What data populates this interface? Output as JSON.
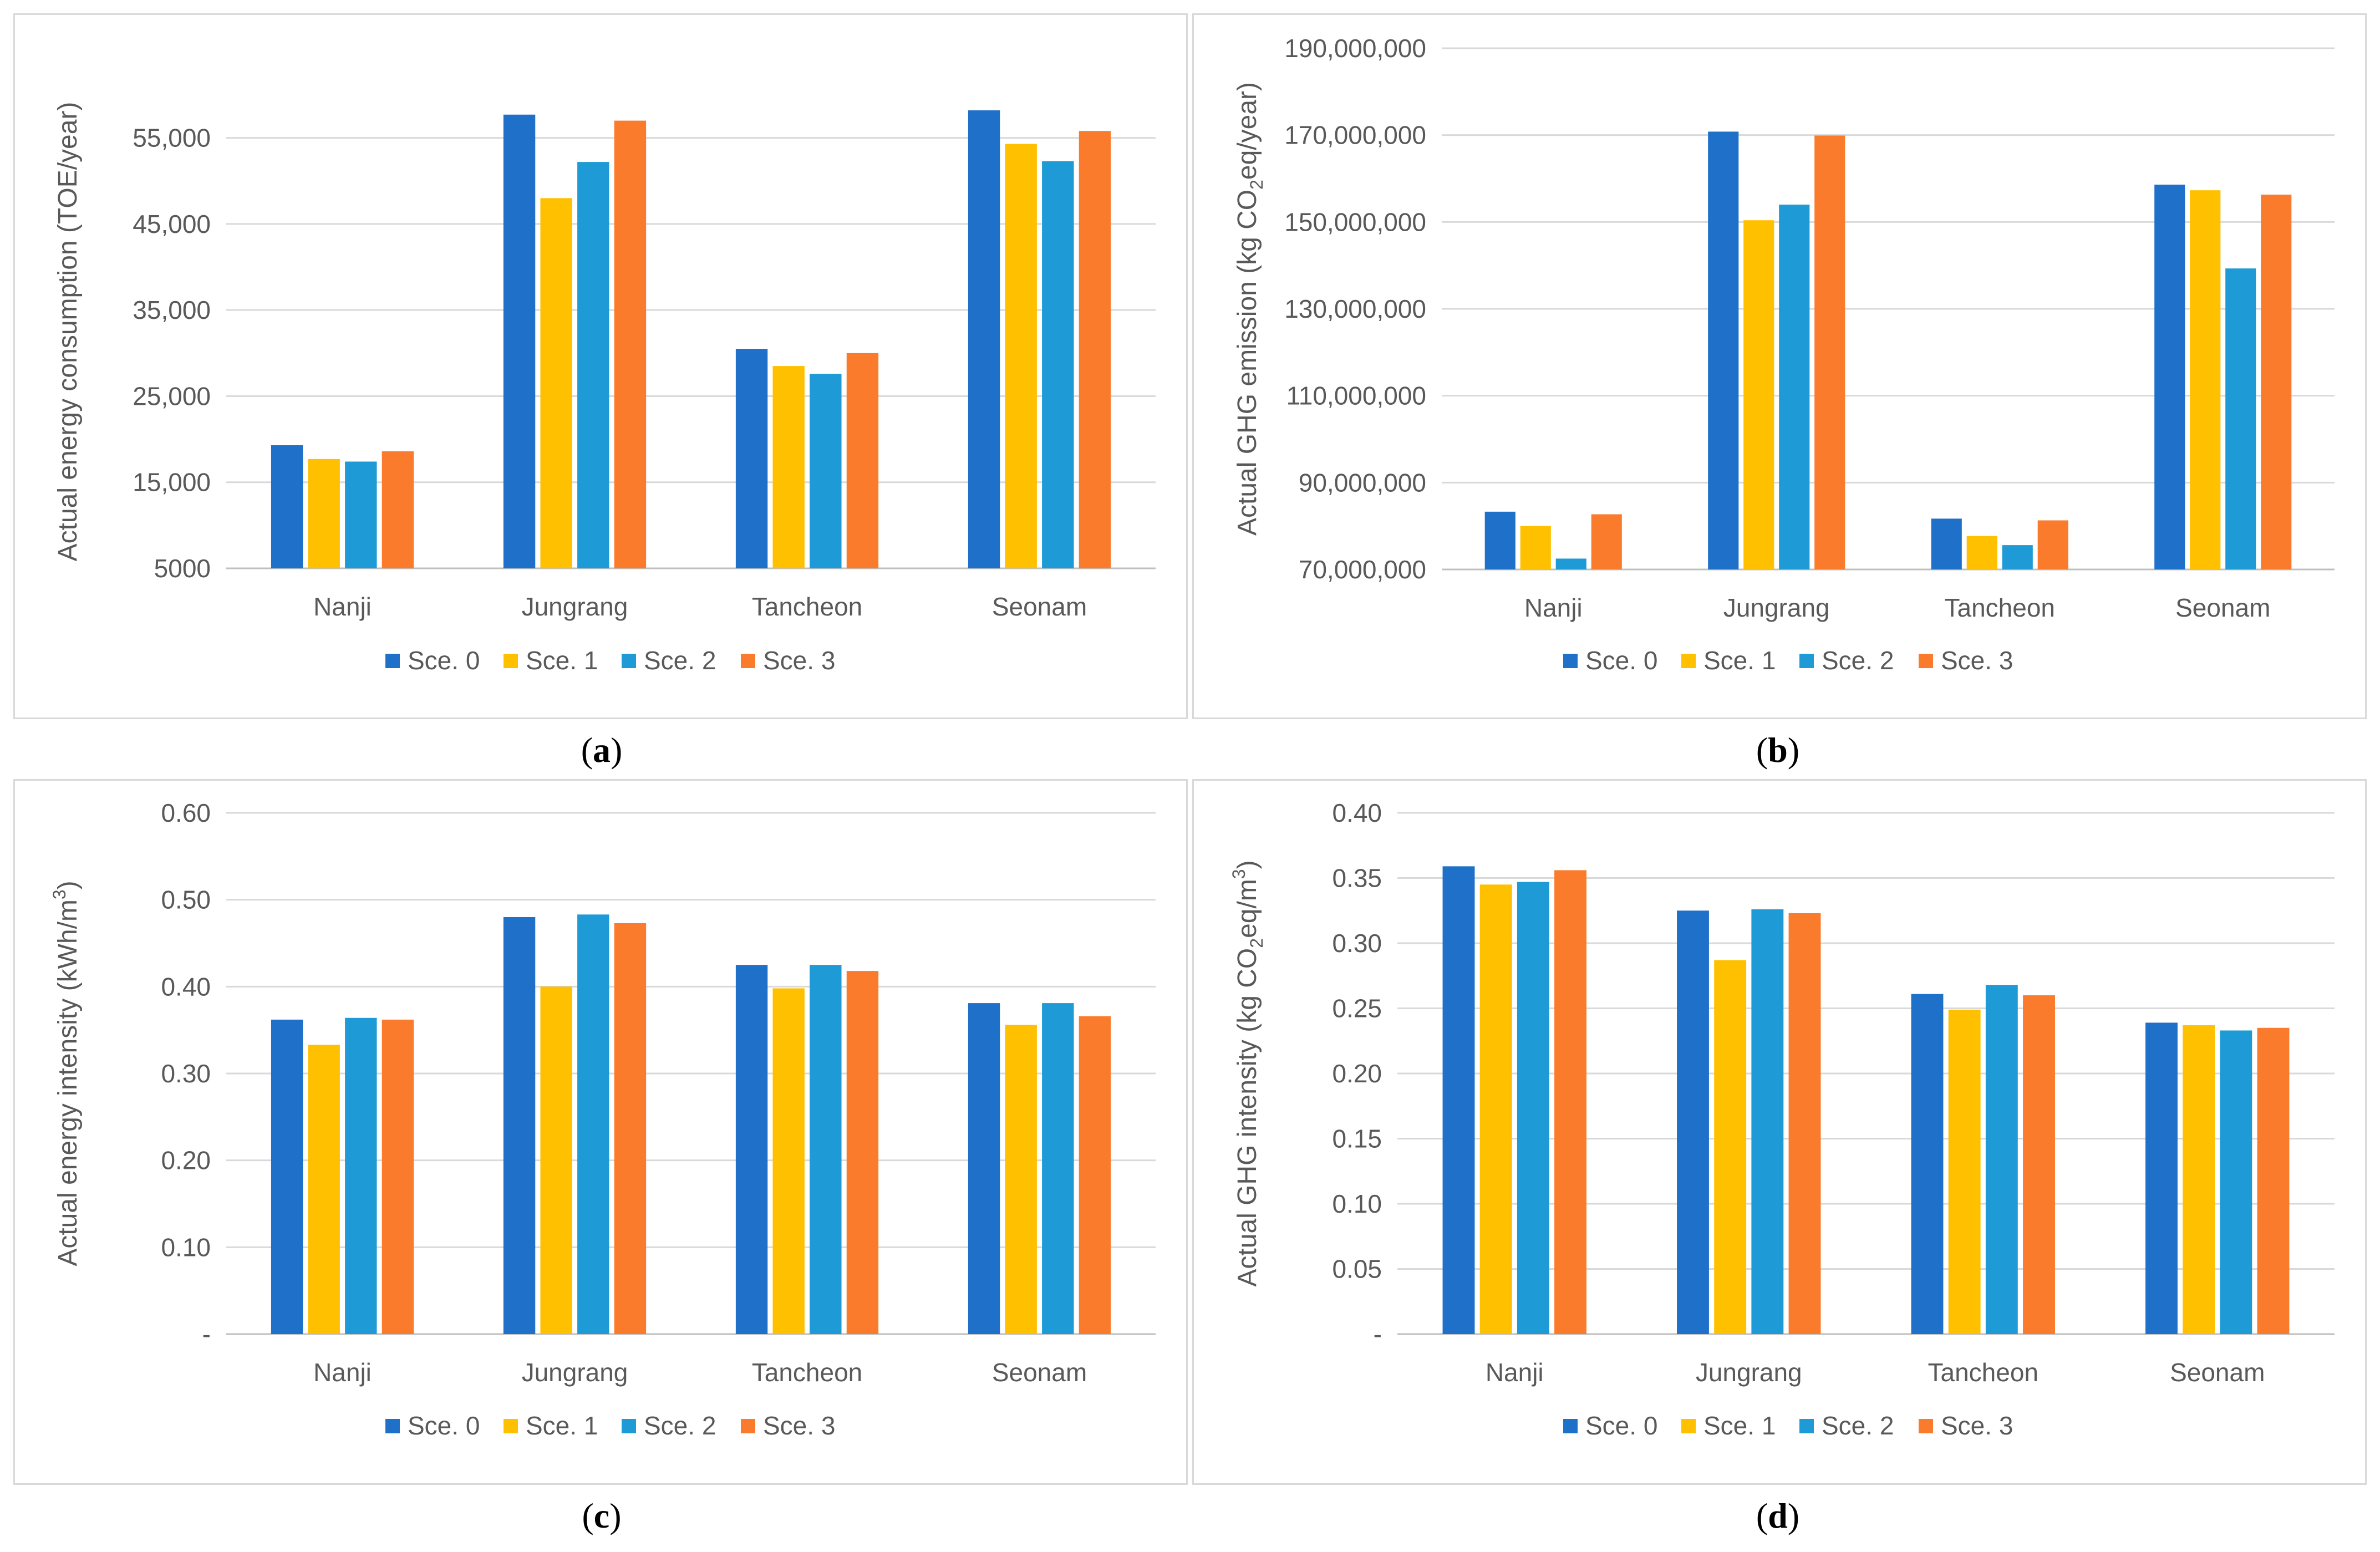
{
  "colors": {
    "s0": "#1f70c8",
    "s1": "#ffc000",
    "s2": "#1e9bd7",
    "s3": "#fb7b2c",
    "grid": "#d9d9d9",
    "axis": "#bfbfbf",
    "text": "#595959"
  },
  "chart_data": [
    {
      "id": "a",
      "type": "bar",
      "panel_label": "a",
      "title": "",
      "ylabel": "Actual energy consumption (TOE/year)",
      "categories": [
        "Nanji",
        "Jungrang",
        "Tancheon",
        "Seonam"
      ],
      "ylim": [
        5000,
        60000
      ],
      "yticks": [
        5000,
        15000,
        25000,
        35000,
        45000,
        55000
      ],
      "ytick_labels": [
        "5000",
        "15,000",
        "25,000",
        "35,000",
        "45,000",
        "55,000"
      ],
      "series": [
        {
          "name": "Sce. 0",
          "values": [
            19300,
            57700,
            30500,
            58200
          ]
        },
        {
          "name": "Sce. 1",
          "values": [
            17700,
            48000,
            28500,
            54300
          ]
        },
        {
          "name": "Sce. 2",
          "values": [
            17400,
            52200,
            27600,
            52300
          ]
        },
        {
          "name": "Sce. 3",
          "values": [
            18600,
            57000,
            30000,
            55800
          ]
        }
      ]
    },
    {
      "id": "b",
      "type": "bar",
      "panel_label": "b",
      "title": "",
      "ylabel_parts": [
        "Actual GHG emission (kg CO",
        "2",
        "eq/year)"
      ],
      "categories": [
        "Nanji",
        "Jungrang",
        "Tancheon",
        "Seonam"
      ],
      "ylim": [
        70000000,
        190000000
      ],
      "yticks": [
        70000000,
        90000000,
        110000000,
        130000000,
        150000000,
        170000000,
        190000000
      ],
      "ytick_labels": [
        "70,000,000",
        "90,000,000",
        "110,000,000",
        "130,000,000",
        "150,000,000",
        "170,000,000",
        "190,000,000"
      ],
      "series": [
        {
          "name": "Sce. 0",
          "values": [
            83300000,
            170800000,
            81700000,
            158600000
          ]
        },
        {
          "name": "Sce. 1",
          "values": [
            80000000,
            150400000,
            77700000,
            157300000
          ]
        },
        {
          "name": "Sce. 2",
          "values": [
            72500000,
            154000000,
            75600000,
            139300000
          ]
        },
        {
          "name": "Sce. 3",
          "values": [
            82700000,
            169900000,
            81300000,
            156300000
          ]
        }
      ]
    },
    {
      "id": "c",
      "type": "bar",
      "panel_label": "c",
      "title": "",
      "ylabel_parts": [
        "Actual energy intensity (kWh/m",
        "3",
        ")"
      ],
      "categories": [
        "Nanji",
        "Jungrang",
        "Tancheon",
        "Seonam"
      ],
      "ylim": [
        0,
        0.6
      ],
      "yticks": [
        0,
        0.1,
        0.2,
        0.3,
        0.4,
        0.5,
        0.6
      ],
      "ytick_labels": [
        "-",
        "0.10",
        "0.20",
        "0.30",
        "0.40",
        "0.50",
        "0.60"
      ],
      "series": [
        {
          "name": "Sce. 0",
          "values": [
            0.362,
            0.48,
            0.425,
            0.381
          ]
        },
        {
          "name": "Sce. 1",
          "values": [
            0.333,
            0.4,
            0.398,
            0.356
          ]
        },
        {
          "name": "Sce. 2",
          "values": [
            0.364,
            0.483,
            0.425,
            0.381
          ]
        },
        {
          "name": "Sce. 3",
          "values": [
            0.362,
            0.473,
            0.418,
            0.366
          ]
        }
      ]
    },
    {
      "id": "d",
      "type": "bar",
      "panel_label": "d",
      "title": "",
      "ylabel_parts": [
        "Actual GHG intensity (kg CO",
        "2",
        "eq/m",
        "3",
        ")"
      ],
      "categories": [
        "Nanji",
        "Jungrang",
        "Tancheon",
        "Seonam"
      ],
      "ylim": [
        0,
        0.4
      ],
      "yticks": [
        0,
        0.05,
        0.1,
        0.15,
        0.2,
        0.25,
        0.3,
        0.35,
        0.4
      ],
      "ytick_labels": [
        "-",
        "0.05",
        "0.10",
        "0.15",
        "0.20",
        "0.25",
        "0.30",
        "0.35",
        "0.40"
      ],
      "series": [
        {
          "name": "Sce. 0",
          "values": [
            0.359,
            0.325,
            0.261,
            0.239
          ]
        },
        {
          "name": "Sce. 1",
          "values": [
            0.345,
            0.287,
            0.249,
            0.237
          ]
        },
        {
          "name": "Sce. 2",
          "values": [
            0.347,
            0.326,
            0.268,
            0.233
          ]
        },
        {
          "name": "Sce. 3",
          "values": [
            0.356,
            0.323,
            0.26,
            0.235
          ]
        }
      ]
    }
  ]
}
